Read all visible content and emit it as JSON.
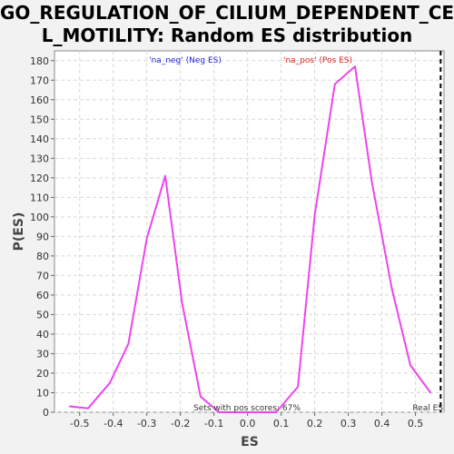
{
  "chart_data": {
    "type": "line",
    "title_line1": "GO_REGULATION_OF_CILIUM_DEPENDENT_CEL",
    "title_line2": "L_MOTILITY: Random ES distribution",
    "xlabel": "ES",
    "ylabel": "P(ES)",
    "xlim": [
      -0.575,
      0.585
    ],
    "ylim": [
      0,
      185
    ],
    "x_ticks": [
      -0.5,
      -0.4,
      -0.3,
      -0.2,
      -0.1,
      0.0,
      0.1,
      0.2,
      0.3,
      0.4,
      0.5
    ],
    "x_tick_labels": [
      "-0.5",
      "-0.4",
      "-0.3",
      "-0.2",
      "-0.1",
      "0.0",
      "0.1",
      "0.2",
      "0.3",
      "0.4",
      "0.5"
    ],
    "y_ticks": [
      0,
      10,
      20,
      30,
      40,
      50,
      60,
      70,
      80,
      90,
      100,
      110,
      120,
      130,
      140,
      150,
      160,
      170,
      180
    ],
    "grid": true,
    "series": [
      {
        "color": "#ee44ee",
        "x": [
          -0.53,
          -0.475,
          -0.41,
          -0.355,
          -0.3,
          -0.245,
          -0.195,
          -0.14,
          -0.085,
          -0.03,
          0.025,
          0.085,
          0.15,
          0.2,
          0.26,
          0.32,
          0.37,
          0.43,
          0.485,
          0.545
        ],
        "y": [
          3,
          2,
          15,
          35,
          89,
          121,
          56,
          8,
          0,
          0,
          0,
          0,
          13,
          101,
          168,
          177,
          118,
          63,
          24,
          10
        ]
      }
    ],
    "real_es": 0.575,
    "annotations": {
      "neg_label": "'na_neg' (Neg ES)",
      "pos_label": "'na_pos' (Pos ES)",
      "pos_scores": "Sets with pos scores: 67%",
      "real_es_label": "Real ES"
    },
    "colors": {
      "neg_label": "#2222dd",
      "pos_label": "#dd2222",
      "real_es_line": "#000000",
      "grid": "#d8d8d8"
    }
  }
}
